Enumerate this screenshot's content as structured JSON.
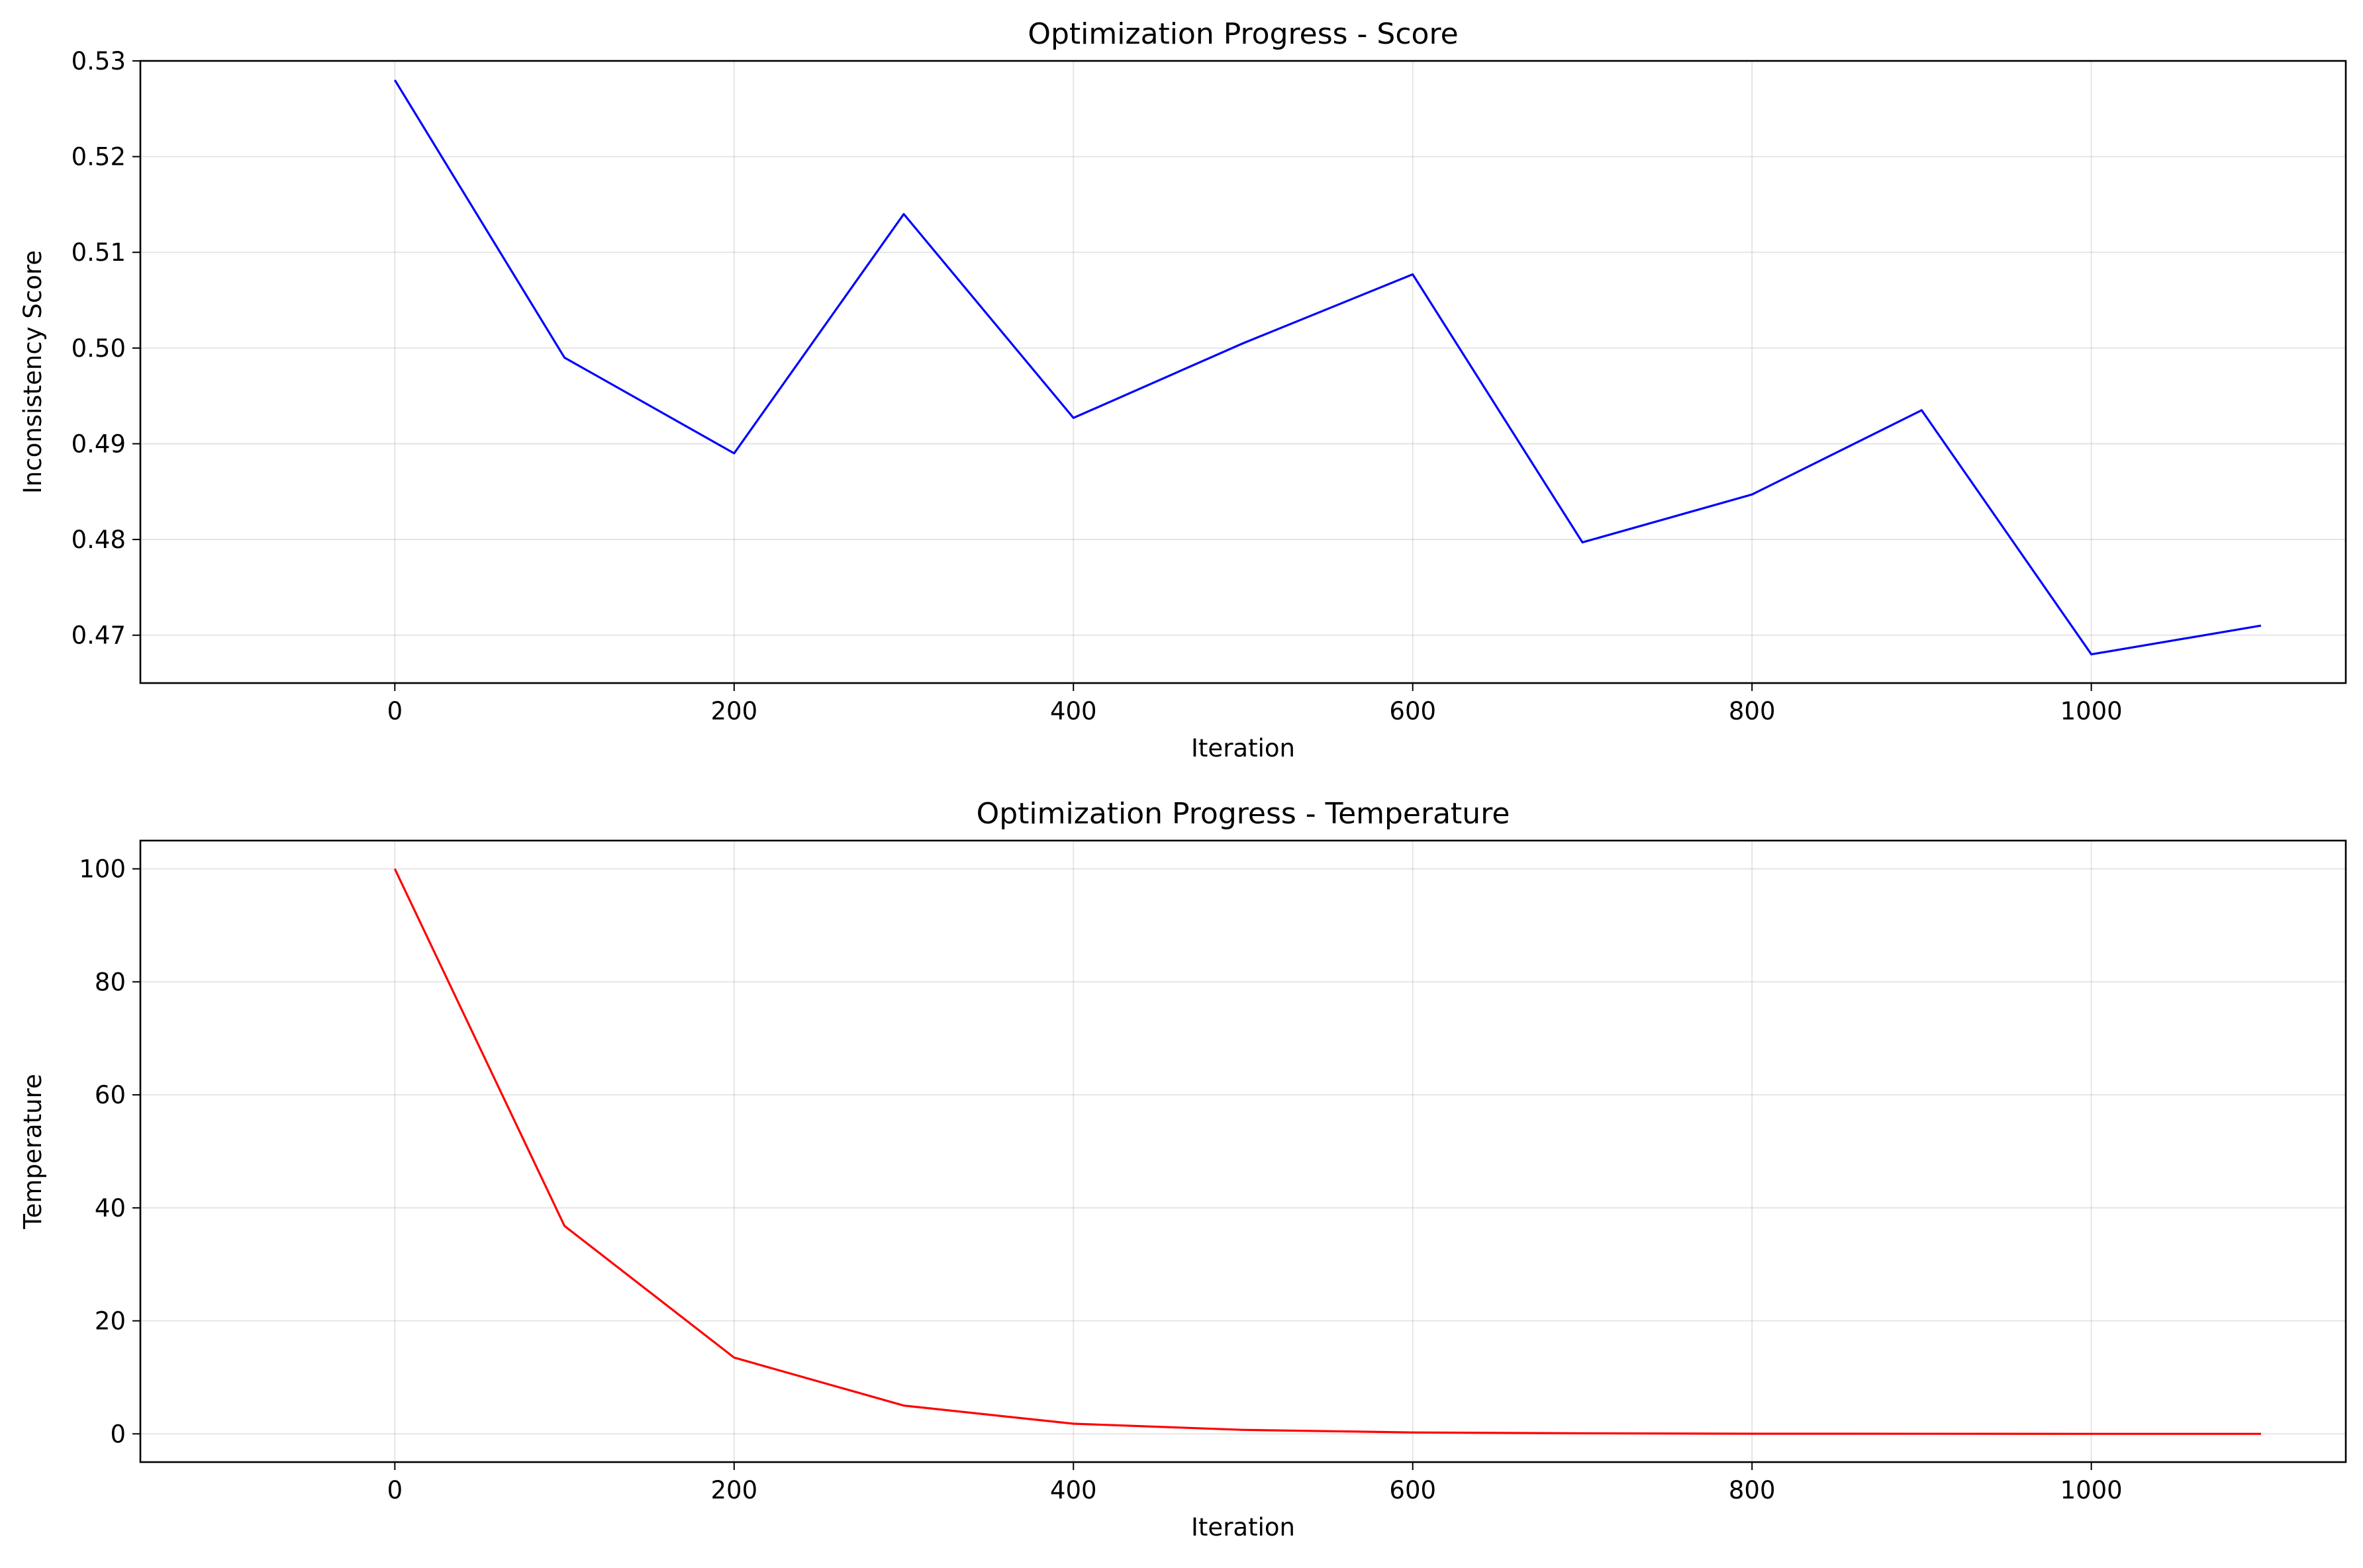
{
  "chart_data": [
    {
      "type": "line",
      "title": "Optimization Progress - Score",
      "xlabel": "Iteration",
      "ylabel": "Inconsistency Score",
      "xlim": [
        -150,
        1150
      ],
      "ylim": [
        0.465,
        0.53
      ],
      "xticks": [
        0,
        200,
        400,
        600,
        800,
        1000
      ],
      "xtick_labels": [
        "0",
        "200",
        "400",
        "600",
        "800",
        "1000"
      ],
      "yticks": [
        0.47,
        0.48,
        0.49,
        0.5,
        0.51,
        0.52,
        0.53
      ],
      "ytick_labels": [
        "0.47",
        "0.48",
        "0.49",
        "0.50",
        "0.51",
        "0.52",
        "0.53"
      ],
      "grid": true,
      "series": [
        {
          "color": "#0000ff",
          "x": [
            0,
            100,
            200,
            300,
            400,
            500,
            600,
            700,
            800,
            900,
            1000,
            1100
          ],
          "y": [
            0.528,
            0.499,
            0.489,
            0.514,
            0.4927,
            0.5005,
            0.5077,
            0.4797,
            0.4847,
            0.4935,
            0.468,
            0.471
          ]
        }
      ]
    },
    {
      "type": "line",
      "title": "Optimization Progress - Temperature",
      "xlabel": "Iteration",
      "ylabel": "Temperature",
      "xlim": [
        -150,
        1150
      ],
      "ylim": [
        -5,
        105
      ],
      "xticks": [
        0,
        200,
        400,
        600,
        800,
        1000
      ],
      "xtick_labels": [
        "0",
        "200",
        "400",
        "600",
        "800",
        "1000"
      ],
      "yticks": [
        0,
        20,
        40,
        60,
        80,
        100
      ],
      "ytick_labels": [
        "0",
        "20",
        "40",
        "60",
        "80",
        "100"
      ],
      "grid": true,
      "series": [
        {
          "color": "#ff0000",
          "x": [
            0,
            100,
            200,
            300,
            400,
            500,
            600,
            700,
            800,
            900,
            1000,
            1100
          ],
          "y": [
            100,
            36.8,
            13.5,
            5.0,
            1.8,
            0.7,
            0.25,
            0.09,
            0.03,
            0.01,
            0.005,
            0.002
          ]
        }
      ]
    }
  ]
}
